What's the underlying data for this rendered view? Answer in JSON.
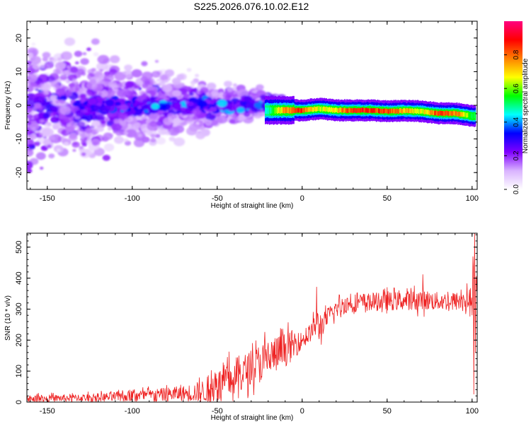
{
  "figure_title": "S225.2026.076.10.02.E12",
  "chart_data": [
    {
      "type": "heatmap",
      "title": "S225.2026.076.10.02.E12",
      "xlabel": "Height of straight line (km)",
      "ylabel": "Frequency (Hz)",
      "xlim": [
        -162,
        103
      ],
      "ylim": [
        -25,
        25
      ],
      "xticks": [
        -150,
        -100,
        -50,
        0,
        50,
        100
      ],
      "yticks": [
        -20,
        -10,
        0,
        10,
        20
      ],
      "colorbar": {
        "label": "Normalized spectral amplitude",
        "range": [
          0.0,
          1.0
        ],
        "ticks": [
          0.0,
          0.2,
          0.4,
          0.6,
          0.8
        ],
        "colormap": [
          "#ffffff",
          "#d9b3ff",
          "#8000ff",
          "#0000ff",
          "#00ffff",
          "#00ff00",
          "#ffff00",
          "#ff8000",
          "#ff0000",
          "#ff0080"
        ]
      },
      "ridge": {
        "description_label": "dominant frequency track",
        "x": [
          -20,
          -10,
          0,
          10,
          20,
          30,
          40,
          50,
          60,
          70,
          80,
          90,
          100
        ],
        "frequency": [
          -1.5,
          -1.5,
          -1.5,
          -1.0,
          -1.5,
          -1.5,
          -1.5,
          -1.8,
          -1.6,
          -1.8,
          -2.4,
          -2.4,
          -3.2
        ],
        "peak_amplitude": [
          0.5,
          0.85,
          0.9,
          0.7,
          0.75,
          0.95,
          0.9,
          0.9,
          0.8,
          0.7,
          0.9,
          0.85,
          0.6
        ]
      }
    },
    {
      "type": "line",
      "xlabel": "Height of straight line (km)",
      "ylabel": "SNR (10 * v/v)",
      "xlim": [
        -162,
        103
      ],
      "ylim": [
        0,
        545
      ],
      "xticks": [
        -150,
        -100,
        -50,
        0,
        50,
        100
      ],
      "yticks": [
        0,
        100,
        200,
        300,
        400,
        500
      ],
      "series": [
        {
          "name": "SNR",
          "color": "#ee2222",
          "x": [
            -162,
            -150,
            -140,
            -130,
            -120,
            -110,
            -100,
            -90,
            -80,
            -70,
            -60,
            -55,
            -50,
            -45,
            -40,
            -35,
            -30,
            -25,
            -20,
            -15,
            -10,
            -5,
            0,
            5,
            8,
            10,
            12,
            15,
            20,
            25,
            30,
            40,
            50,
            60,
            70,
            80,
            90,
            100,
            102,
            103
          ],
          "mean": [
            12,
            12,
            13,
            14,
            15,
            17,
            20,
            22,
            25,
            28,
            33,
            40,
            50,
            65,
            80,
            95,
            110,
            125,
            140,
            155,
            170,
            185,
            200,
            225,
            250,
            245,
            250,
            275,
            300,
            315,
            320,
            323,
            325,
            327,
            330,
            325,
            325,
            330,
            300,
            320
          ],
          "spread": [
            12,
            12,
            12,
            12,
            14,
            16,
            18,
            20,
            22,
            25,
            35,
            45,
            55,
            60,
            65,
            60,
            55,
            65,
            70,
            60,
            55,
            50,
            25,
            30,
            40,
            60,
            35,
            30,
            30,
            30,
            30,
            30,
            30,
            30,
            35,
            30,
            30,
            40,
            150,
            60
          ]
        }
      ],
      "spikes": [
        {
          "x": 8.5,
          "value": 372
        },
        {
          "x": 71,
          "value": 412
        },
        {
          "x": 100.5,
          "value": 470
        },
        {
          "x": 101.5,
          "value": 545
        },
        {
          "x": 101,
          "value": 25
        }
      ]
    }
  ]
}
